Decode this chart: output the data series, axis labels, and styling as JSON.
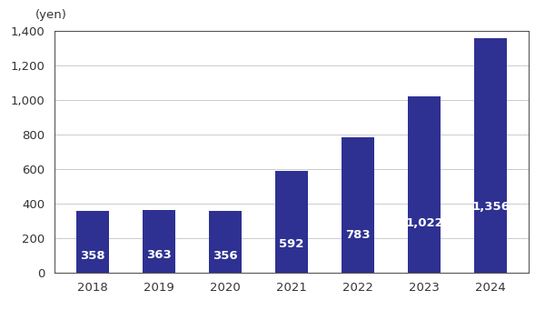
{
  "categories": [
    "2018",
    "2019",
    "2020",
    "2021",
    "2022",
    "2023",
    "2024"
  ],
  "values": [
    358,
    363,
    356,
    592,
    783,
    1022,
    1356
  ],
  "bar_color": "#2E3192",
  "label_color": "#FFFFFF",
  "ylabel_text": "(yen)",
  "ylim": [
    0,
    1400
  ],
  "yticks": [
    0,
    200,
    400,
    600,
    800,
    1000,
    1200,
    1400
  ],
  "label_fontsize": 9.5,
  "xlabel_fontsize": 9.5,
  "ylabel_fontsize": 9.5,
  "background_color": "#FFFFFF",
  "grid_color": "#CCCCCC",
  "bar_width": 0.5,
  "spine_color": "#555555"
}
